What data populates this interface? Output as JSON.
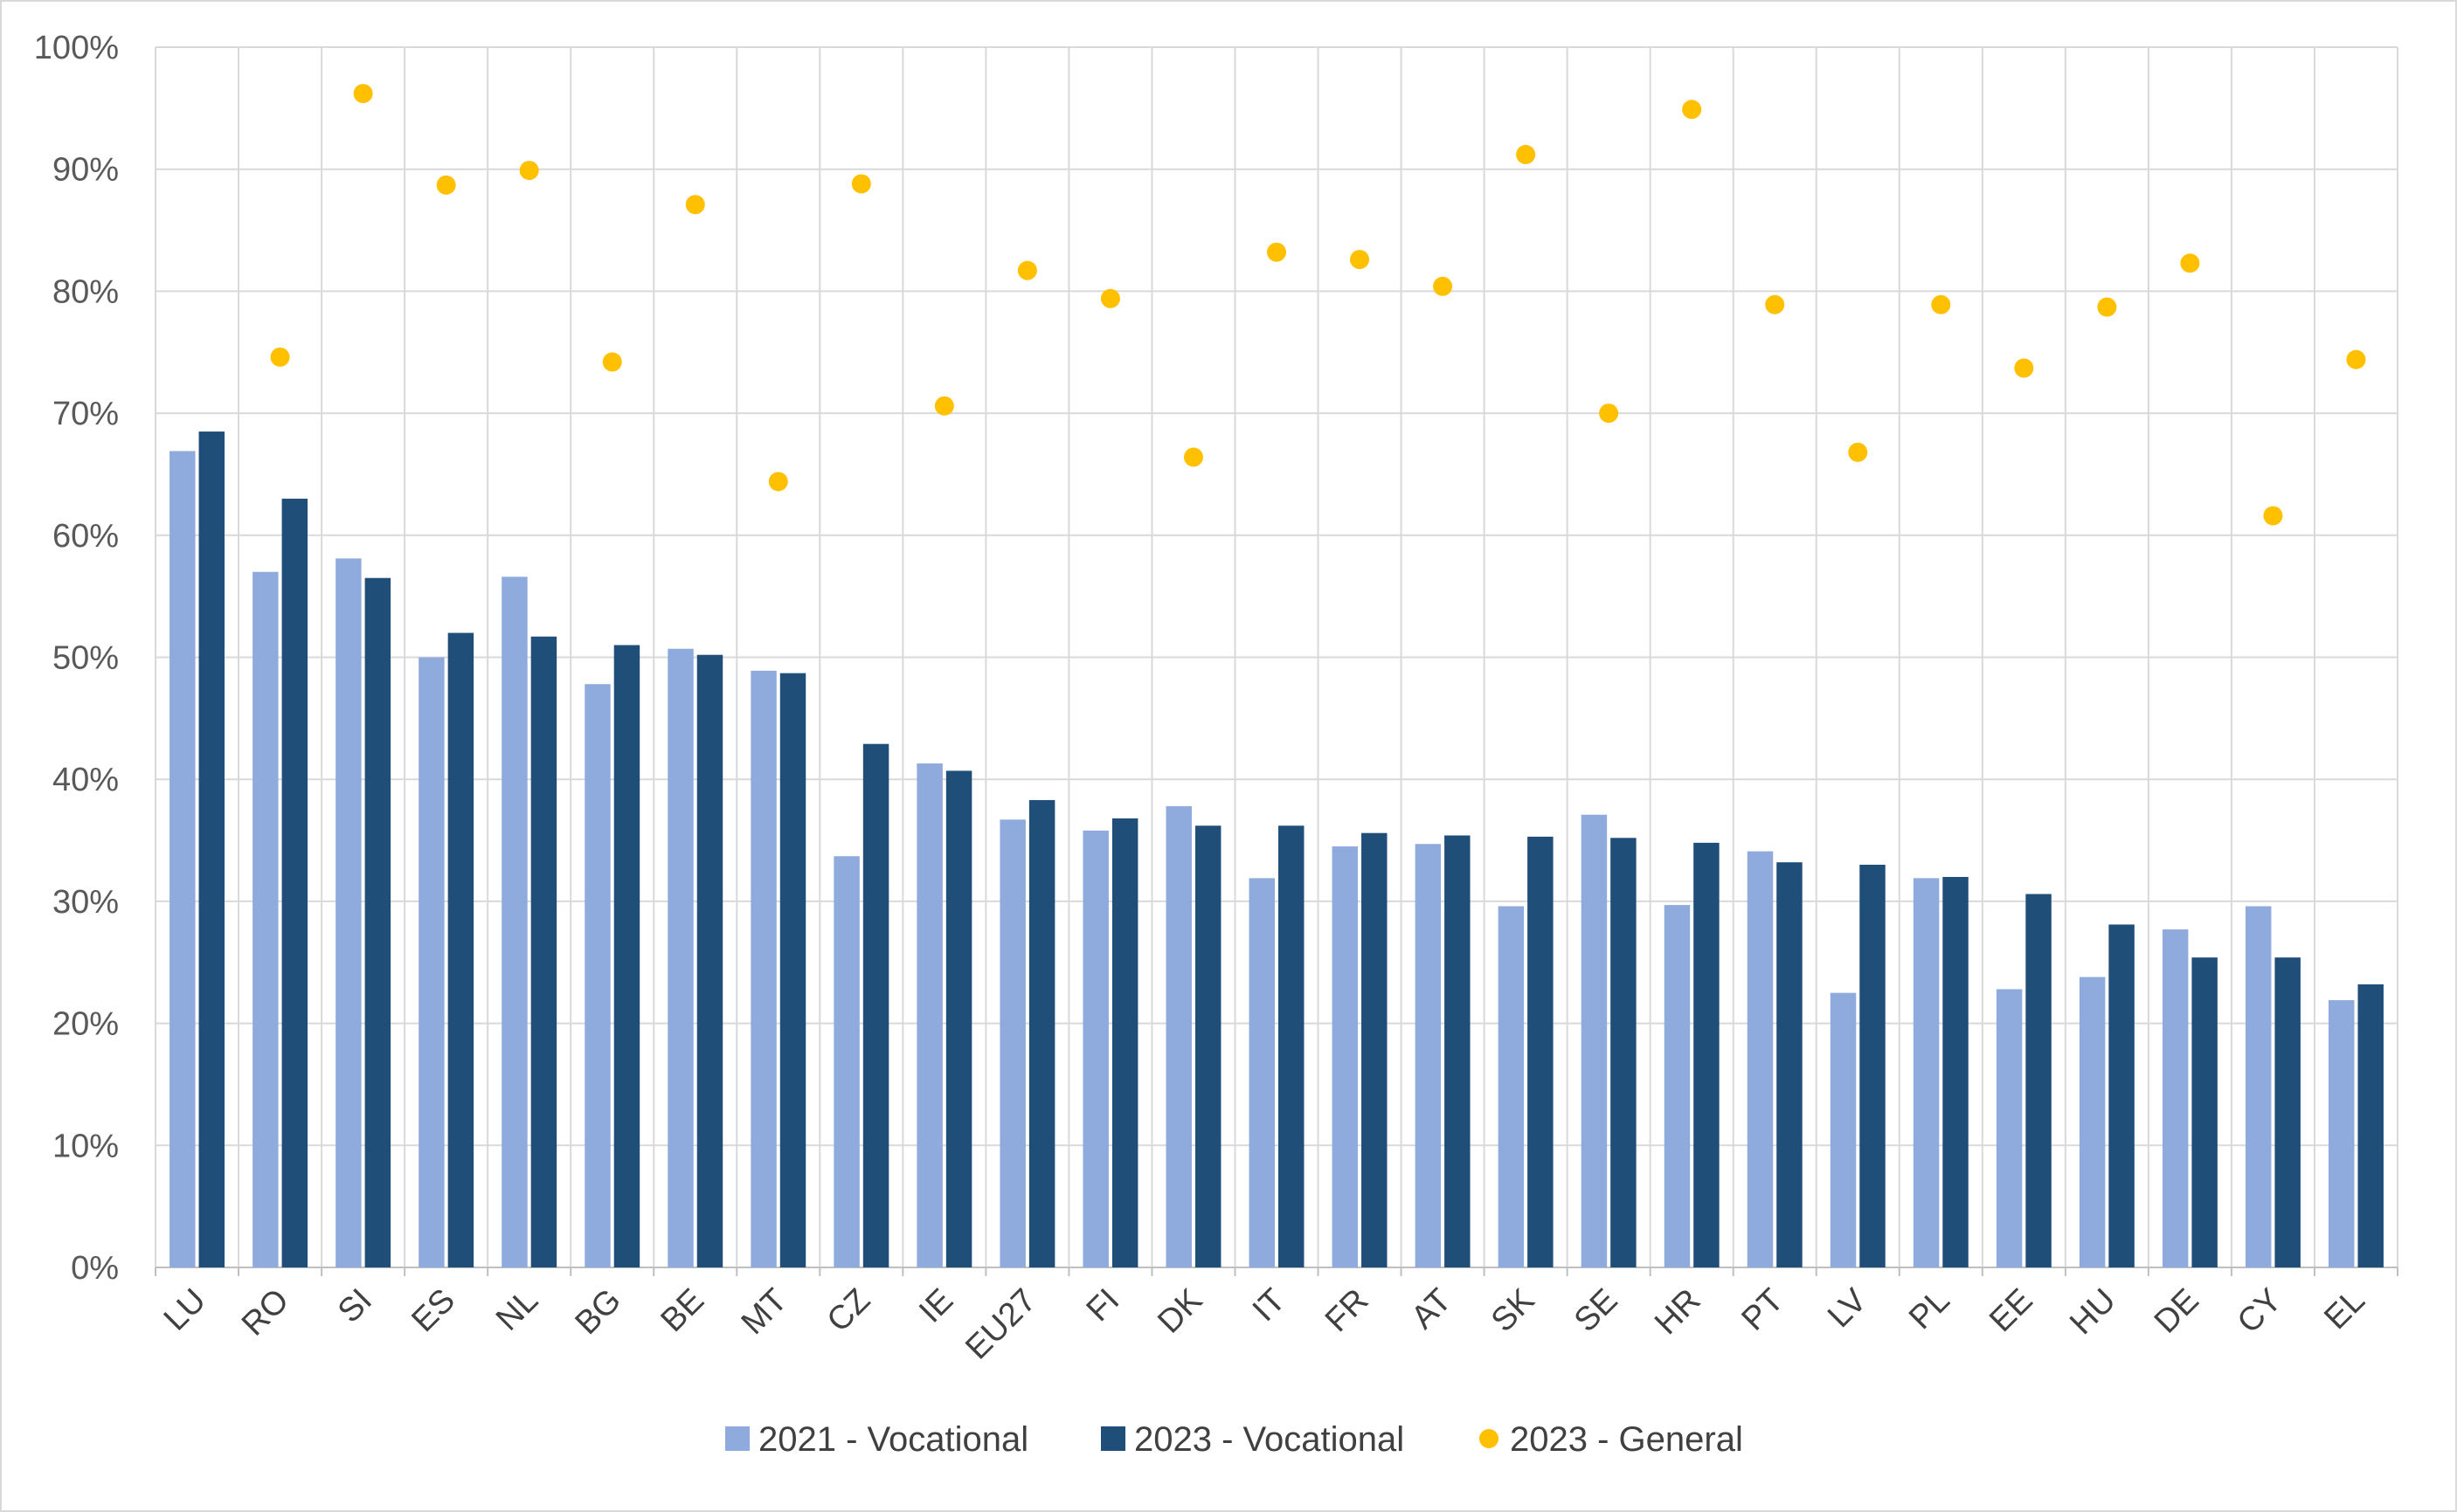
{
  "chart_data": {
    "type": "bar",
    "categories": [
      "LU",
      "RO",
      "SI",
      "ES",
      "NL",
      "BG",
      "BE",
      "MT",
      "CZ",
      "IE",
      "EU27",
      "FI",
      "DK",
      "IT",
      "FR",
      "AT",
      "SK",
      "SE",
      "HR",
      "PT",
      "LV",
      "PL",
      "EE",
      "HU",
      "DE",
      "CY",
      "EL"
    ],
    "series": [
      {
        "name": "2021 - Vocational",
        "type": "bar",
        "color": "#8faadc",
        "values": [
          66.9,
          57.0,
          58.1,
          50.0,
          56.6,
          47.8,
          50.7,
          48.9,
          33.7,
          41.3,
          36.7,
          35.8,
          37.8,
          31.9,
          34.5,
          34.7,
          29.6,
          37.1,
          29.7,
          34.1,
          22.5,
          31.9,
          22.8,
          23.8,
          27.7,
          29.6,
          21.9
        ]
      },
      {
        "name": "2023 - Vocational",
        "type": "bar",
        "color": "#1f4e79",
        "values": [
          68.5,
          63.0,
          56.5,
          52.0,
          51.7,
          51.0,
          50.2,
          48.7,
          42.9,
          40.7,
          38.3,
          36.8,
          36.2,
          36.2,
          35.6,
          35.4,
          35.3,
          35.2,
          34.8,
          33.2,
          33.0,
          32.0,
          30.6,
          28.1,
          25.4,
          25.4,
          23.2
        ]
      },
      {
        "name": "2023 - General",
        "type": "scatter",
        "color": "#ffc000",
        "values": [
          null,
          74.6,
          96.2,
          88.7,
          89.9,
          74.2,
          87.1,
          64.4,
          88.8,
          70.6,
          81.7,
          79.4,
          66.4,
          83.2,
          82.6,
          80.4,
          91.2,
          70.0,
          94.9,
          78.9,
          66.8,
          78.9,
          73.7,
          78.7,
          82.3,
          61.6,
          74.4
        ]
      }
    ],
    "ylim": [
      0,
      100
    ],
    "yticks": [
      "0%",
      "10%",
      "20%",
      "30%",
      "40%",
      "50%",
      "60%",
      "70%",
      "80%",
      "90%",
      "100%"
    ],
    "title": "",
    "xlabel": "",
    "ylabel": "",
    "grid": true,
    "legend_position": "bottom"
  }
}
